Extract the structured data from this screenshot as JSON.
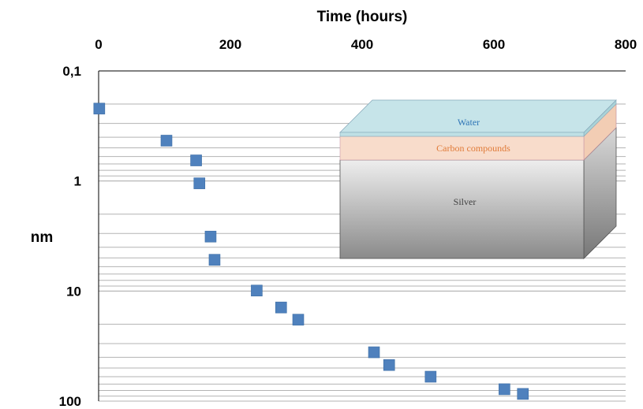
{
  "chart_data": {
    "type": "scatter",
    "xlabel": "Time (hours)",
    "ylabel": "nm",
    "xlim": [
      0,
      800
    ],
    "ylim": [
      0.1,
      100
    ],
    "yscale": "log",
    "y_inverted": true,
    "x_axis_position": "top",
    "xticks": [
      "0",
      "200",
      "400",
      "600",
      "800"
    ],
    "yticks": [
      "0,1",
      "1",
      "10",
      "100"
    ],
    "grid": "horizontal minor lines",
    "legend": "none",
    "marker": "square",
    "marker_color": "#4F81BD",
    "series": [
      {
        "x": [
          1,
          103,
          148,
          153,
          170,
          176,
          240,
          277,
          303,
          418,
          441,
          504,
          616,
          644
        ],
        "y": [
          0.22,
          0.43,
          0.65,
          1.05,
          3.2,
          5.2,
          9.9,
          14.1,
          18.2,
          36,
          47,
          60,
          78,
          86
        ]
      }
    ],
    "inset": {
      "layers": [
        {
          "label": "Water",
          "color": "#2E75B6"
        },
        {
          "label": "Carbon compounds",
          "color": "#E07B39"
        },
        {
          "label": "Silver",
          "color": "#404040"
        }
      ]
    }
  }
}
